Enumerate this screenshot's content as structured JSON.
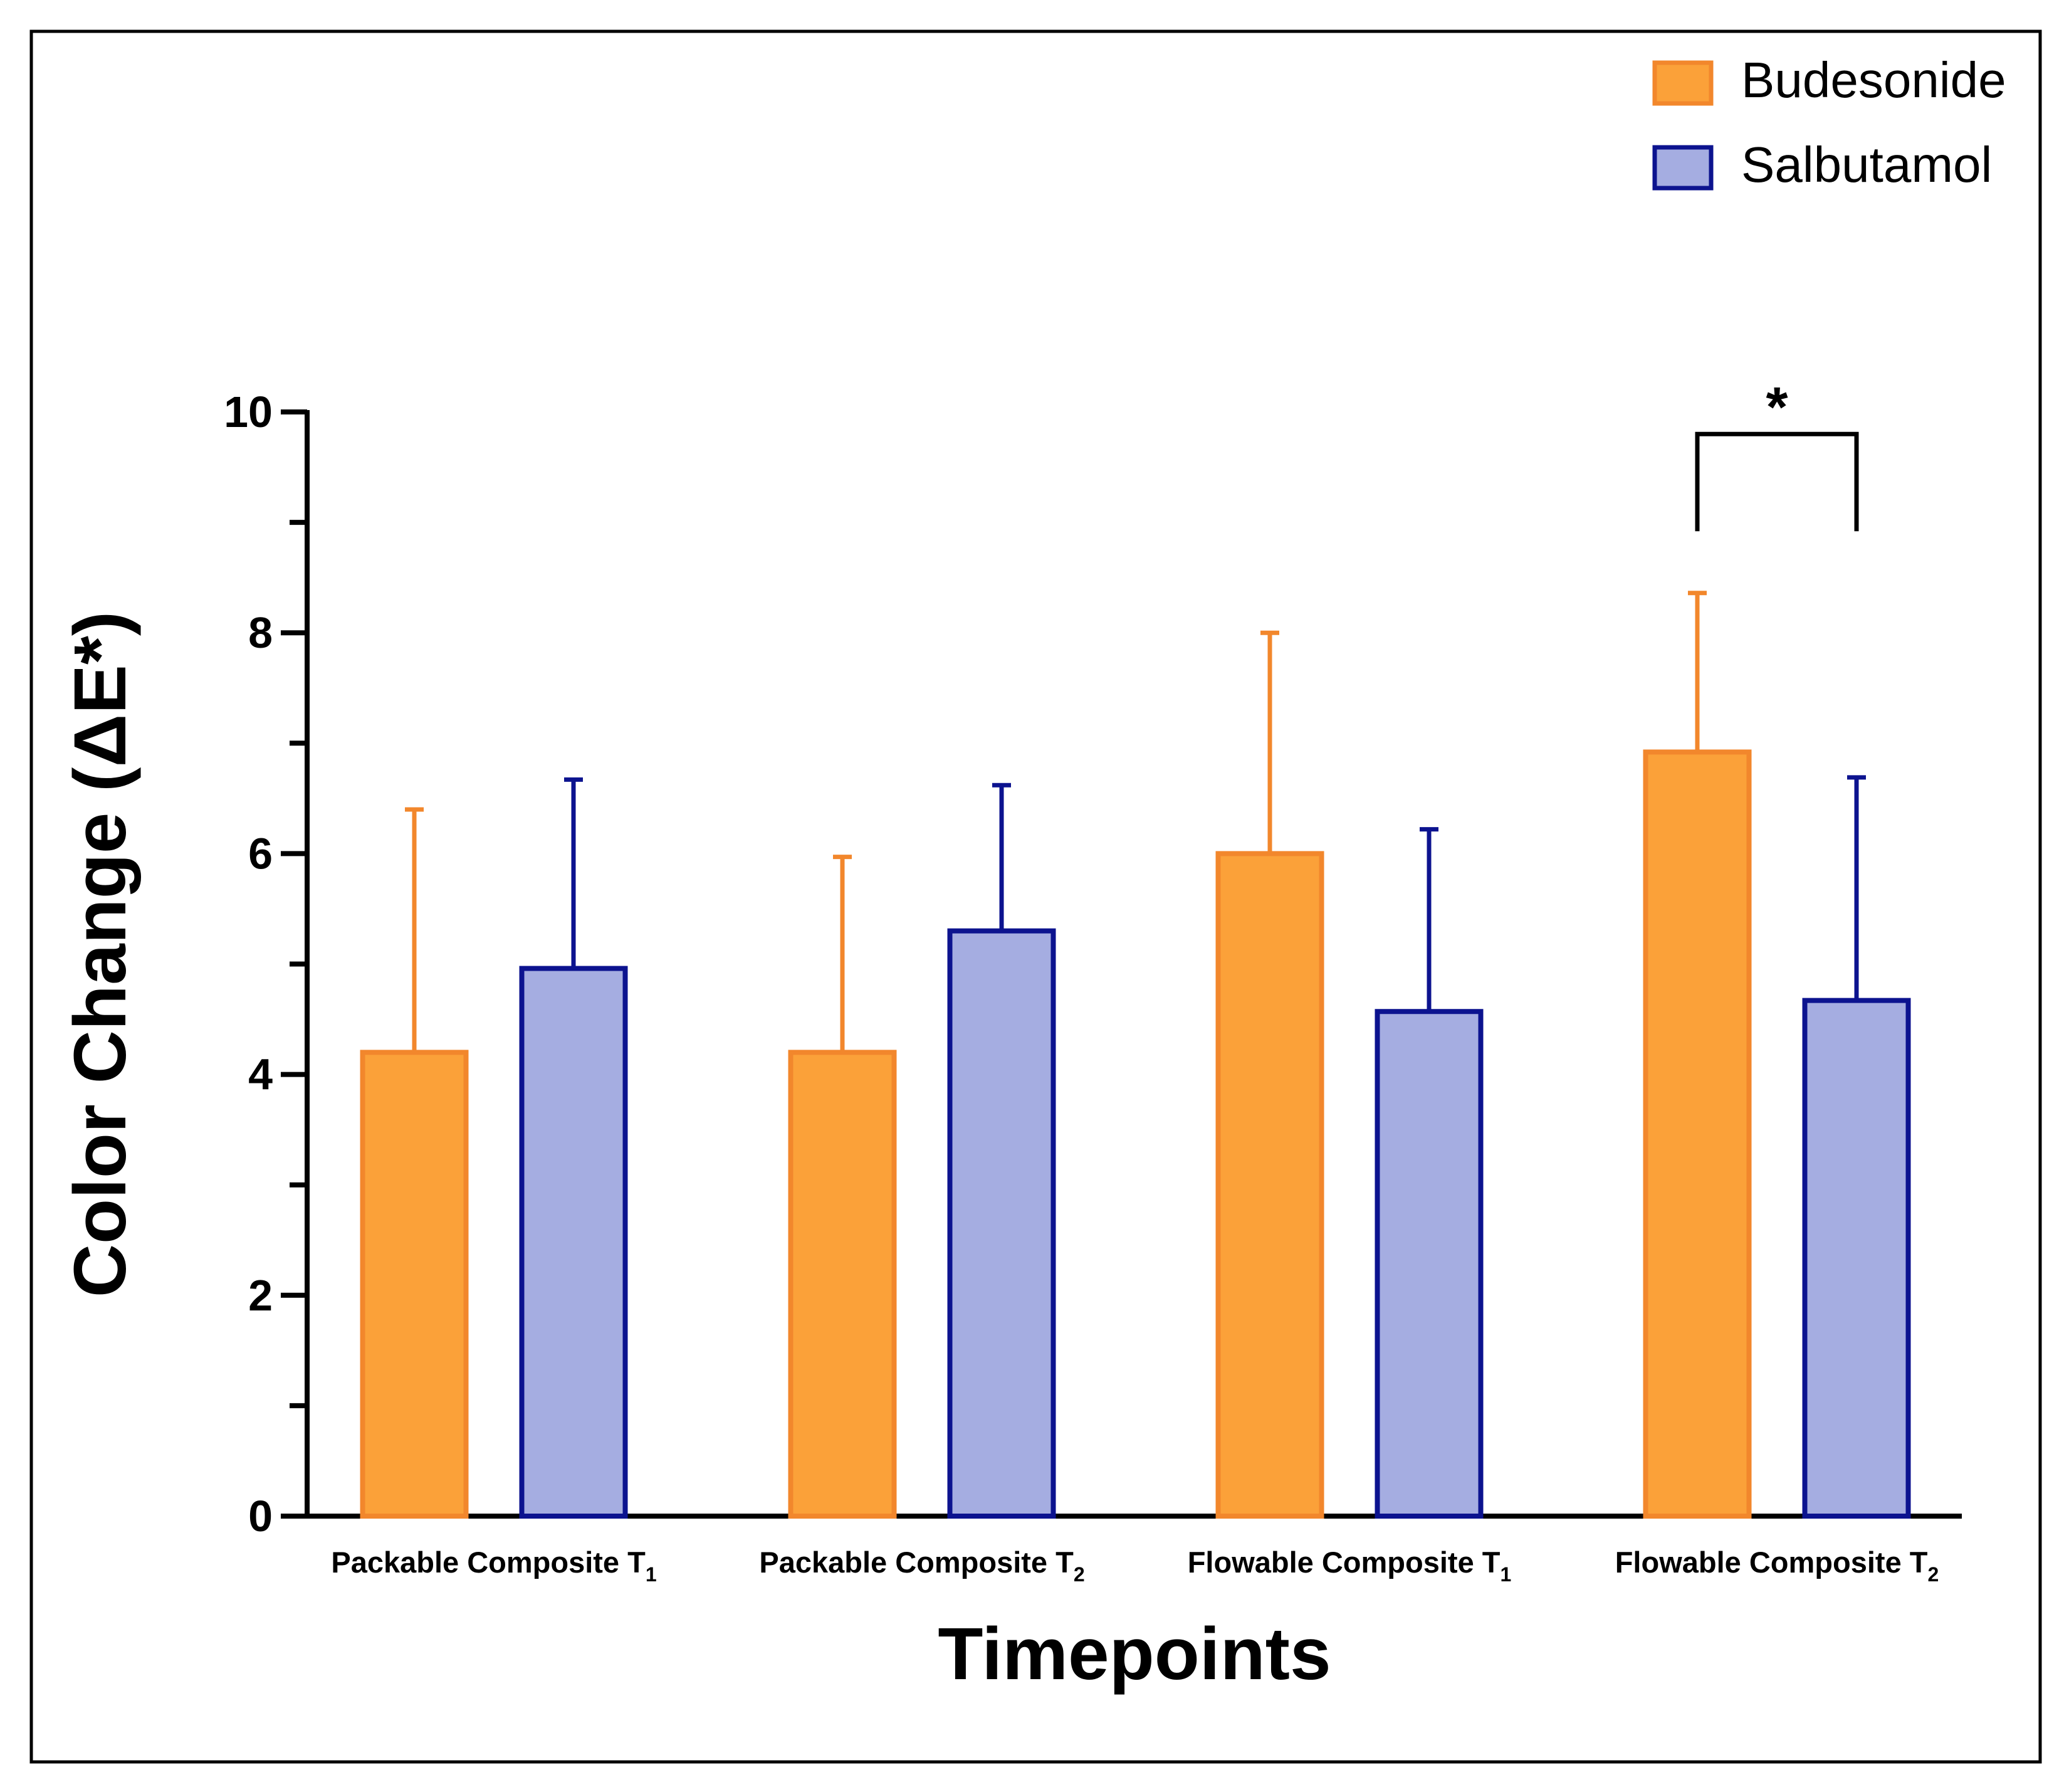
{
  "chart_data": {
    "type": "bar",
    "title": "",
    "xlabel": "Timepoints",
    "ylabel": "Color Change (ΔE*)",
    "ylim": [
      0,
      10
    ],
    "yticks": [
      0,
      2,
      4,
      6,
      8,
      10
    ],
    "categories": [
      {
        "base": "Packable Composite T",
        "sub": "1"
      },
      {
        "base": "Packable Composite T",
        "sub": "2"
      },
      {
        "base": "Flowable Composite T",
        "sub": "1"
      },
      {
        "base": "Flowable Composite T",
        "sub": "2"
      }
    ],
    "series": [
      {
        "name": "Budesonide",
        "fill": "#FBA139",
        "stroke": "#F2872C",
        "values": [
          4.2,
          4.2,
          6.0,
          6.92
        ],
        "error_upper": [
          6.4,
          5.97,
          8.0,
          8.36
        ]
      },
      {
        "name": "Salbutamol",
        "fill": "#A5ADE1",
        "stroke": "#0C138F",
        "values": [
          4.96,
          5.3,
          4.57,
          4.67
        ],
        "error_upper": [
          6.67,
          6.62,
          6.22,
          6.69
        ]
      }
    ],
    "legend_position": "top-right",
    "annotations": [
      {
        "text": "*",
        "category_index": 3,
        "type": "significance-bracket",
        "y": 9.8
      }
    ],
    "grid": false
  }
}
